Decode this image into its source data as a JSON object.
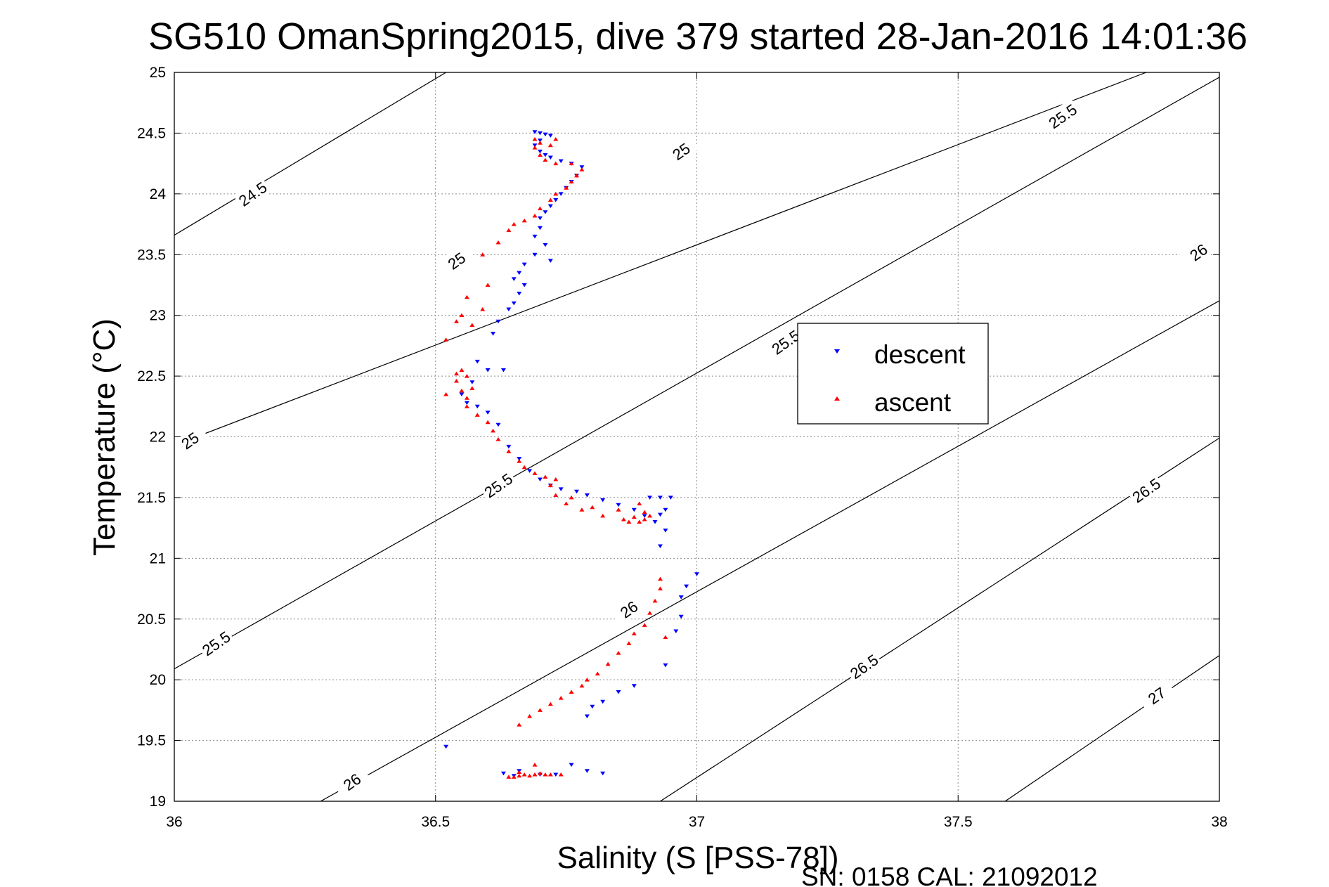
{
  "chart_data": {
    "type": "scatter",
    "title": "SG510 OmanSpring2015, dive 379 started 28-Jan-2016 14:01:36",
    "xlabel": "Salinity (S [PSS-78])",
    "ylabel": "Temperature (°C)",
    "xlim": [
      36,
      38
    ],
    "ylim": [
      19,
      25
    ],
    "xticks": [
      "36",
      "36.5",
      "37",
      "37.5",
      "38"
    ],
    "yticks": [
      "19",
      "19.5",
      "20",
      "20.5",
      "21",
      "21.5",
      "22",
      "22.5",
      "23",
      "23.5",
      "24",
      "24.5",
      "25"
    ],
    "grid": true,
    "legend_position": "right",
    "footer_note": "SN: 0158  CAL: 21092012",
    "density_contours": [
      {
        "label": "24.5",
        "points": [
          [
            36.0,
            23.66
          ],
          [
            36.52,
            25.0
          ]
        ]
      },
      {
        "label": "25",
        "points": [
          [
            36.0,
            21.93
          ],
          [
            37.86,
            25.0
          ]
        ]
      },
      {
        "label": "25.5",
        "points": [
          [
            36.0,
            20.09
          ],
          [
            38.0,
            24.96
          ]
        ]
      },
      {
        "label": "26",
        "points": [
          [
            36.28,
            19.0
          ],
          [
            38.0,
            23.12
          ]
        ]
      },
      {
        "label": "26.5",
        "points": [
          [
            36.93,
            19.0
          ],
          [
            38.0,
            21.99
          ]
        ]
      },
      {
        "label": "27",
        "points": [
          [
            37.59,
            19.0
          ],
          [
            38.0,
            20.2
          ]
        ]
      }
    ],
    "contour_labels": [
      {
        "text": "24.5",
        "s": 36.15,
        "t": 24.0
      },
      {
        "text": "25",
        "s": 36.54,
        "t": 23.45
      },
      {
        "text": "25",
        "s": 36.97,
        "t": 24.35
      },
      {
        "text": "25",
        "s": 36.03,
        "t": 21.97
      },
      {
        "text": "25.5",
        "s": 36.08,
        "t": 20.3
      },
      {
        "text": "25.5",
        "s": 36.62,
        "t": 21.6
      },
      {
        "text": "25.5",
        "s": 37.17,
        "t": 22.78
      },
      {
        "text": "25.5",
        "s": 37.7,
        "t": 24.64
      },
      {
        "text": "26",
        "s": 36.34,
        "t": 19.16
      },
      {
        "text": "26",
        "s": 36.87,
        "t": 20.58
      },
      {
        "text": "26",
        "s": 37.96,
        "t": 23.52
      },
      {
        "text": "26.5",
        "s": 37.32,
        "t": 20.11
      },
      {
        "text": "26.5",
        "s": 37.86,
        "t": 21.56
      },
      {
        "text": "27",
        "s": 37.88,
        "t": 19.87
      }
    ],
    "series": [
      {
        "name": "descent",
        "color": "#0000ff",
        "marker": "triangle-down",
        "points": [
          [
            36.69,
            24.51
          ],
          [
            36.7,
            24.5
          ],
          [
            36.71,
            24.49
          ],
          [
            36.72,
            24.48
          ],
          [
            36.7,
            24.44
          ],
          [
            36.69,
            24.4
          ],
          [
            36.7,
            24.35
          ],
          [
            36.71,
            24.32
          ],
          [
            36.72,
            24.3
          ],
          [
            36.74,
            24.27
          ],
          [
            36.76,
            24.25
          ],
          [
            36.78,
            24.22
          ],
          [
            36.77,
            24.15
          ],
          [
            36.76,
            24.1
          ],
          [
            36.75,
            24.05
          ],
          [
            36.74,
            24.0
          ],
          [
            36.73,
            23.95
          ],
          [
            36.72,
            23.9
          ],
          [
            36.71,
            23.85
          ],
          [
            36.7,
            23.8
          ],
          [
            36.7,
            23.72
          ],
          [
            36.69,
            23.65
          ],
          [
            36.71,
            23.58
          ],
          [
            36.69,
            23.5
          ],
          [
            36.72,
            23.45
          ],
          [
            36.67,
            23.42
          ],
          [
            36.66,
            23.35
          ],
          [
            36.65,
            23.3
          ],
          [
            36.67,
            23.25
          ],
          [
            36.66,
            23.18
          ],
          [
            36.65,
            23.1
          ],
          [
            36.64,
            23.05
          ],
          [
            36.62,
            22.95
          ],
          [
            36.61,
            22.85
          ],
          [
            36.58,
            22.62
          ],
          [
            36.6,
            22.55
          ],
          [
            36.63,
            22.55
          ],
          [
            36.57,
            22.45
          ],
          [
            36.55,
            22.35
          ],
          [
            36.56,
            22.28
          ],
          [
            36.58,
            22.25
          ],
          [
            36.6,
            22.2
          ],
          [
            36.62,
            22.1
          ],
          [
            36.64,
            21.92
          ],
          [
            36.66,
            21.82
          ],
          [
            36.68,
            21.72
          ],
          [
            36.7,
            21.65
          ],
          [
            36.72,
            21.6
          ],
          [
            36.74,
            21.57
          ],
          [
            36.77,
            21.55
          ],
          [
            36.79,
            21.52
          ],
          [
            36.82,
            21.48
          ],
          [
            36.85,
            21.44
          ],
          [
            36.88,
            21.4
          ],
          [
            36.9,
            21.35
          ],
          [
            36.92,
            21.3
          ],
          [
            36.93,
            21.36
          ],
          [
            36.91,
            21.5
          ],
          [
            36.93,
            21.5
          ],
          [
            36.95,
            21.5
          ],
          [
            36.94,
            21.4
          ],
          [
            36.94,
            21.23
          ],
          [
            36.93,
            21.1
          ],
          [
            37.0,
            20.87
          ],
          [
            36.98,
            20.77
          ],
          [
            36.97,
            20.68
          ],
          [
            36.97,
            20.52
          ],
          [
            36.96,
            20.4
          ],
          [
            36.94,
            20.12
          ],
          [
            36.88,
            19.95
          ],
          [
            36.85,
            19.9
          ],
          [
            36.82,
            19.82
          ],
          [
            36.79,
            19.7
          ],
          [
            36.8,
            19.78
          ],
          [
            36.52,
            19.45
          ],
          [
            36.66,
            19.25
          ],
          [
            36.7,
            19.22
          ],
          [
            36.73,
            19.22
          ],
          [
            36.76,
            19.3
          ],
          [
            36.79,
            19.25
          ],
          [
            36.82,
            19.23
          ],
          [
            36.63,
            19.23
          ],
          [
            36.65,
            19.21
          ]
        ]
      },
      {
        "name": "ascent",
        "color": "#ff0000",
        "marker": "triangle-up",
        "points": [
          [
            36.65,
            19.2
          ],
          [
            36.66,
            19.21
          ],
          [
            36.67,
            19.22
          ],
          [
            36.68,
            19.21
          ],
          [
            36.69,
            19.22
          ],
          [
            36.7,
            19.23
          ],
          [
            36.71,
            19.22
          ],
          [
            36.72,
            19.22
          ],
          [
            36.74,
            19.22
          ],
          [
            36.69,
            19.3
          ],
          [
            36.66,
            19.24
          ],
          [
            36.64,
            19.2
          ],
          [
            36.66,
            19.63
          ],
          [
            36.68,
            19.7
          ],
          [
            36.7,
            19.75
          ],
          [
            36.72,
            19.8
          ],
          [
            36.74,
            19.85
          ],
          [
            36.76,
            19.9
          ],
          [
            36.78,
            19.95
          ],
          [
            36.79,
            20.0
          ],
          [
            36.81,
            20.05
          ],
          [
            36.83,
            20.13
          ],
          [
            36.85,
            20.22
          ],
          [
            36.87,
            20.3
          ],
          [
            36.88,
            20.38
          ],
          [
            36.9,
            20.45
          ],
          [
            36.91,
            20.55
          ],
          [
            36.92,
            20.65
          ],
          [
            36.93,
            20.75
          ],
          [
            36.93,
            20.83
          ],
          [
            36.94,
            20.35
          ],
          [
            36.89,
            21.3
          ],
          [
            36.9,
            21.32
          ],
          [
            36.91,
            21.35
          ],
          [
            36.9,
            21.38
          ],
          [
            36.88,
            21.34
          ],
          [
            36.87,
            21.3
          ],
          [
            36.86,
            21.32
          ],
          [
            36.89,
            21.45
          ],
          [
            36.85,
            21.4
          ],
          [
            36.82,
            21.35
          ],
          [
            36.8,
            21.42
          ],
          [
            36.78,
            21.4
          ],
          [
            36.76,
            21.5
          ],
          [
            36.75,
            21.45
          ],
          [
            36.73,
            21.52
          ],
          [
            36.72,
            21.6
          ],
          [
            36.73,
            21.65
          ],
          [
            36.71,
            21.67
          ],
          [
            36.69,
            21.7
          ],
          [
            36.67,
            21.75
          ],
          [
            36.66,
            21.8
          ],
          [
            36.64,
            21.88
          ],
          [
            36.62,
            21.98
          ],
          [
            36.61,
            22.05
          ],
          [
            36.6,
            22.12
          ],
          [
            36.58,
            22.18
          ],
          [
            36.56,
            22.25
          ],
          [
            36.56,
            22.32
          ],
          [
            36.55,
            22.38
          ],
          [
            36.54,
            22.46
          ],
          [
            36.54,
            22.52
          ],
          [
            36.55,
            22.55
          ],
          [
            36.56,
            22.5
          ],
          [
            36.57,
            22.4
          ],
          [
            36.52,
            22.35
          ],
          [
            36.52,
            22.8
          ],
          [
            36.54,
            22.95
          ],
          [
            36.55,
            23.0
          ],
          [
            36.57,
            22.92
          ],
          [
            36.59,
            23.05
          ],
          [
            36.56,
            23.15
          ],
          [
            36.6,
            23.25
          ],
          [
            36.59,
            23.5
          ],
          [
            36.62,
            23.6
          ],
          [
            36.64,
            23.7
          ],
          [
            36.65,
            23.75
          ],
          [
            36.67,
            23.78
          ],
          [
            36.69,
            23.82
          ],
          [
            36.7,
            23.88
          ],
          [
            36.72,
            23.95
          ],
          [
            36.73,
            24.0
          ],
          [
            36.75,
            24.05
          ],
          [
            36.76,
            24.1
          ],
          [
            36.77,
            24.15
          ],
          [
            36.78,
            24.2
          ],
          [
            36.76,
            24.25
          ],
          [
            36.73,
            24.25
          ],
          [
            36.71,
            24.28
          ],
          [
            36.7,
            24.32
          ],
          [
            36.69,
            24.38
          ],
          [
            36.7,
            24.42
          ],
          [
            36.72,
            24.4
          ],
          [
            36.73,
            24.45
          ],
          [
            36.69,
            24.45
          ]
        ]
      }
    ]
  }
}
